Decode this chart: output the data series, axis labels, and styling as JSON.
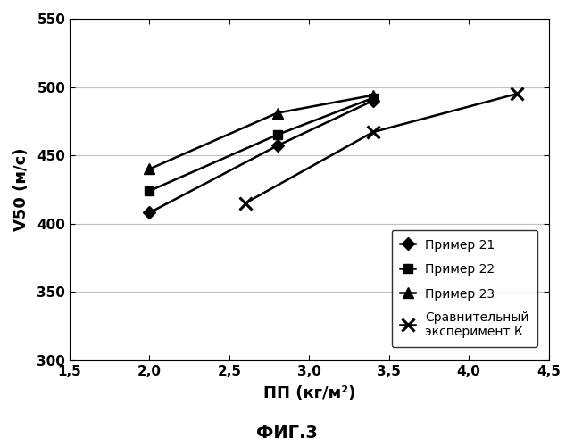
{
  "series": [
    {
      "label": "Пример 21",
      "x": [
        2.0,
        2.8,
        3.4
      ],
      "y": [
        408,
        457,
        490
      ],
      "marker": "D",
      "markersize": 7
    },
    {
      "label": "Пример 22",
      "x": [
        2.0,
        2.8,
        3.4
      ],
      "y": [
        424,
        465,
        492
      ],
      "marker": "s",
      "markersize": 7
    },
    {
      "label": "Пример 23",
      "x": [
        2.0,
        2.8,
        3.4
      ],
      "y": [
        440,
        481,
        494
      ],
      "marker": "^",
      "markersize": 9
    },
    {
      "label": "Сравнительный\nэксперимент К",
      "x": [
        2.6,
        3.4,
        4.3
      ],
      "y": [
        415,
        467,
        495
      ],
      "marker": "x",
      "markersize": 10
    }
  ],
  "xlabel": "ПП (кг/м²)",
  "ylabel": "V50 (м/с)",
  "title": "ФИГ.3",
  "xlim": [
    1.5,
    4.5
  ],
  "ylim": [
    300,
    550
  ],
  "xticks": [
    1.5,
    2.0,
    2.5,
    3.0,
    3.5,
    4.0,
    4.5
  ],
  "yticks": [
    300,
    350,
    400,
    450,
    500,
    550
  ],
  "xtick_labels": [
    "1,5",
    "2,0",
    "2,5",
    "3,0",
    "3,5",
    "4,0",
    "4,5"
  ],
  "ytick_labels": [
    "300",
    "350",
    "400",
    "450",
    "500",
    "550"
  ],
  "line_color": "#000000",
  "grid_color": "#c0c0c0",
  "background_color": "#ffffff"
}
